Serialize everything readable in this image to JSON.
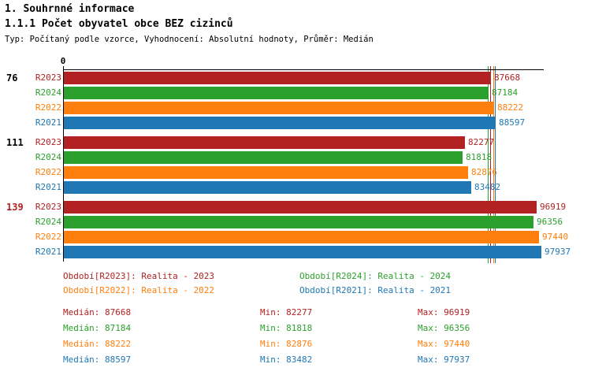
{
  "header": {
    "title1": "1. Souhrnné informace",
    "title2": "1.1.1 Počet obyvatel obce BEZ cizinců",
    "subtitle": "Typ: Počítaný podle vzorce, Vyhodnocení: Absolutní hodnoty, Průměr: Medián"
  },
  "chart_data": {
    "type": "bar",
    "orientation": "horizontal",
    "title": "1.1.1 Počet obyvatel obce BEZ cizinců",
    "origin_label": "0",
    "xlim": [
      0,
      97937
    ],
    "grid": false,
    "legend_position": "bottom",
    "periods": [
      {
        "id": "R2023",
        "name": "Realita - 2023",
        "color": "#B22222"
      },
      {
        "id": "R2024",
        "name": "Realita - 2024",
        "color": "#2CA02C"
      },
      {
        "id": "R2022",
        "name": "Realita - 2022",
        "color": "#FF7F0E"
      },
      {
        "id": "R2021",
        "name": "Realita - 2021",
        "color": "#1F77B4"
      }
    ],
    "groups": [
      {
        "label": "76",
        "label_color": "#000000",
        "values": [
          87668,
          87184,
          88222,
          88597
        ]
      },
      {
        "label": "111",
        "label_color": "#000000",
        "values": [
          82277,
          81818,
          82876,
          83482
        ]
      },
      {
        "label": "139",
        "label_color": "#B22222",
        "values": [
          96919,
          96356,
          97440,
          97937
        ]
      }
    ],
    "medians": [
      87668,
      87184,
      88222,
      88597
    ]
  },
  "legend": [
    {
      "label": "Období[R2023]: Realita - 2023",
      "color": "#B22222"
    },
    {
      "label": "Období[R2024]: Realita - 2024",
      "color": "#2CA02C"
    },
    {
      "label": "Období[R2022]: Realita - 2022",
      "color": "#FF7F0E"
    },
    {
      "label": "Období[R2021]: Realita - 2021",
      "color": "#1F77B4"
    }
  ],
  "stats": [
    {
      "color": "#B22222",
      "median": "Medián: 87668",
      "min": "Min: 82277",
      "max": "Max: 96919"
    },
    {
      "color": "#2CA02C",
      "median": "Medián: 87184",
      "min": "Min: 81818",
      "max": "Max: 96356"
    },
    {
      "color": "#FF7F0E",
      "median": "Medián: 88222",
      "min": "Min: 82876",
      "max": "Max: 97440"
    },
    {
      "color": "#1F77B4",
      "median": "Medián: 88597",
      "min": "Min: 83482",
      "max": "Max: 97937"
    }
  ]
}
